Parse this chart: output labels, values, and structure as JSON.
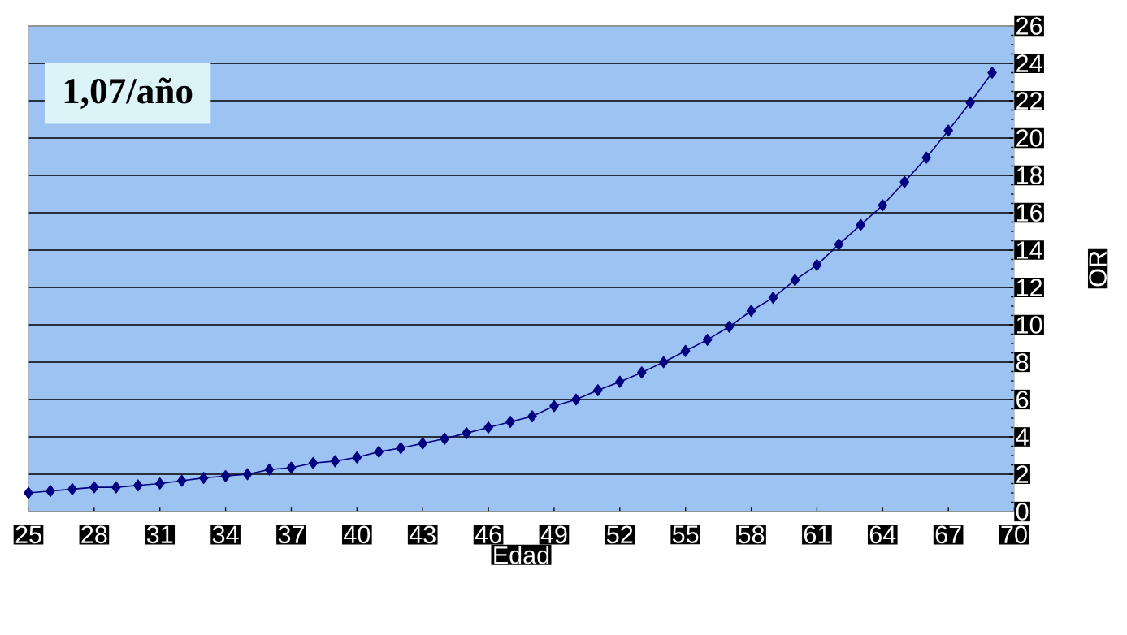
{
  "chart_data": {
    "type": "line",
    "xlabel": "Edad",
    "ylabel": "OR",
    "annotations": [
      "1,07/año"
    ],
    "x": [
      25,
      26,
      27,
      28,
      29,
      30,
      31,
      32,
      33,
      34,
      35,
      36,
      37,
      38,
      39,
      40,
      41,
      42,
      43,
      44,
      45,
      46,
      47,
      48,
      49,
      50,
      51,
      52,
      53,
      54,
      55,
      56,
      57,
      58,
      59,
      60,
      61,
      62,
      63,
      64,
      65,
      66,
      67,
      68,
      69
    ],
    "values": [
      1.0,
      1.1,
      1.2,
      1.3,
      1.3,
      1.4,
      1.5,
      1.65,
      1.8,
      1.9,
      2.0,
      2.25,
      2.35,
      2.6,
      2.7,
      2.9,
      3.2,
      3.4,
      3.65,
      3.9,
      4.2,
      4.5,
      4.8,
      5.1,
      5.65,
      6.0,
      6.5,
      6.95,
      7.45,
      8.0,
      8.6,
      9.2,
      9.9,
      10.75,
      11.45,
      12.4,
      13.2,
      14.3,
      15.35,
      16.4,
      17.65,
      18.95,
      20.4,
      21.9,
      23.5
    ],
    "color": "#000080",
    "marker": "diamond",
    "grid": "y",
    "xlim": [
      25,
      70
    ],
    "ylim": [
      0,
      26
    ],
    "xticks": [
      25,
      28,
      31,
      34,
      37,
      40,
      43,
      46,
      49,
      52,
      55,
      58,
      61,
      64,
      67,
      70
    ],
    "yticks": [
      0,
      2,
      4,
      6,
      8,
      10,
      12,
      14,
      16,
      18,
      20,
      22,
      24,
      26
    ]
  }
}
